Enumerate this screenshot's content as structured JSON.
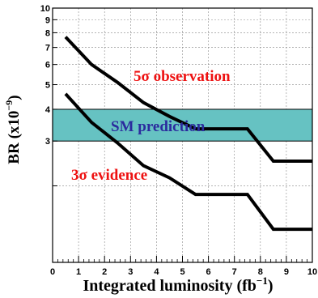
{
  "chart_data": {
    "type": "line",
    "xlabel": "Integrated luminosity (fb",
    "xlabel_sup": "−1",
    "xlabel_end": ")",
    "ylabel": "BR (x10",
    "ylabel_sup": "−9",
    "ylabel_end": ")",
    "xlim": [
      0,
      10
    ],
    "ylim": [
      1,
      10
    ],
    "y_scale": "log",
    "grid": true,
    "x_ticks": [
      "0",
      "1",
      "2",
      "3",
      "4",
      "5",
      "6",
      "7",
      "8",
      "9",
      "10"
    ],
    "y_ticks": [
      {
        "value": 3,
        "label": "3"
      },
      {
        "value": 4,
        "label": "4"
      },
      {
        "value": 5,
        "label": "5"
      },
      {
        "value": 6,
        "label": "6"
      },
      {
        "value": 7,
        "label": "7"
      },
      {
        "value": 8,
        "label": "8"
      },
      {
        "value": 9,
        "label": "9"
      },
      {
        "value": 10,
        "label": "10"
      }
    ],
    "band": {
      "label": "SM prediction",
      "y_low": 3.0,
      "y_high": 4.0,
      "color": "#66c2c2"
    },
    "series": [
      {
        "name": "5σ observation",
        "label_color": "#ee1111",
        "points": [
          [
            0.5,
            7.7
          ],
          [
            1.5,
            6.0
          ],
          [
            2.5,
            5.1
          ],
          [
            3.5,
            4.25
          ],
          [
            4.5,
            3.75
          ],
          [
            5.5,
            3.35
          ],
          [
            6.5,
            3.35
          ],
          [
            7.5,
            3.35
          ],
          [
            8.5,
            2.5
          ],
          [
            9.5,
            2.5
          ],
          [
            10,
            2.5
          ]
        ]
      },
      {
        "name": "3σ evidence",
        "label_color": "#ee1111",
        "points": [
          [
            0.5,
            4.6
          ],
          [
            1.5,
            3.55
          ],
          [
            2.5,
            2.95
          ],
          [
            3.5,
            2.4
          ],
          [
            4.5,
            2.15
          ],
          [
            5.5,
            1.85
          ],
          [
            6.5,
            1.85
          ],
          [
            7.5,
            1.85
          ],
          [
            8.5,
            1.35
          ],
          [
            9.5,
            1.35
          ],
          [
            10,
            1.35
          ]
        ]
      }
    ],
    "band_label_color": "#2b2b9e",
    "line_color": "#000000"
  }
}
